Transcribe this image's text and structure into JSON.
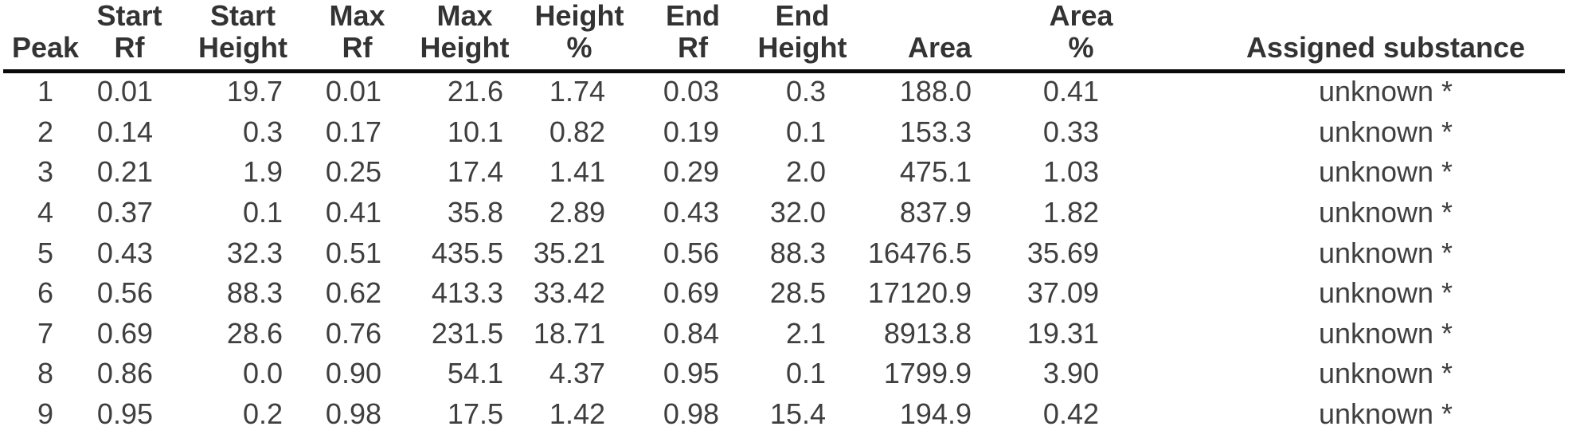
{
  "chart_data": {
    "type": "table",
    "columns": [
      {
        "line1": "",
        "line2": "Peak"
      },
      {
        "line1": "Start",
        "line2": "Rf"
      },
      {
        "line1": "Start",
        "line2": "Height"
      },
      {
        "line1": "Max",
        "line2": "Rf"
      },
      {
        "line1": "Max",
        "line2": "Height"
      },
      {
        "line1": "Height",
        "line2": "%"
      },
      {
        "line1": "End",
        "line2": "Rf"
      },
      {
        "line1": "End",
        "line2": "Height"
      },
      {
        "line1": "",
        "line2": "Area"
      },
      {
        "line1": "Area",
        "line2": "%"
      },
      {
        "line1": "",
        "line2": "Assigned substance"
      }
    ],
    "rows": [
      [
        "1",
        "0.01",
        "19.7",
        "0.01",
        "21.6",
        "1.74",
        "0.03",
        "0.3",
        "188.0",
        "0.41",
        "unknown *"
      ],
      [
        "2",
        "0.14",
        "0.3",
        "0.17",
        "10.1",
        "0.82",
        "0.19",
        "0.1",
        "153.3",
        "0.33",
        "unknown *"
      ],
      [
        "3",
        "0.21",
        "1.9",
        "0.25",
        "17.4",
        "1.41",
        "0.29",
        "2.0",
        "475.1",
        "1.03",
        "unknown *"
      ],
      [
        "4",
        "0.37",
        "0.1",
        "0.41",
        "35.8",
        "2.89",
        "0.43",
        "32.0",
        "837.9",
        "1.82",
        "unknown *"
      ],
      [
        "5",
        "0.43",
        "32.3",
        "0.51",
        "435.5",
        "35.21",
        "0.56",
        "88.3",
        "16476.5",
        "35.69",
        "unknown *"
      ],
      [
        "6",
        "0.56",
        "88.3",
        "0.62",
        "413.3",
        "33.42",
        "0.69",
        "28.5",
        "17120.9",
        "37.09",
        "unknown *"
      ],
      [
        "7",
        "0.69",
        "28.6",
        "0.76",
        "231.5",
        "18.71",
        "0.84",
        "2.1",
        "8913.8",
        "19.31",
        "unknown *"
      ],
      [
        "8",
        "0.86",
        "0.0",
        "0.90",
        "54.1",
        "4.37",
        "0.95",
        "0.1",
        "1799.9",
        "3.90",
        "unknown *"
      ],
      [
        "9",
        "0.95",
        "0.2",
        "0.98",
        "17.5",
        "1.42",
        "0.98",
        "15.4",
        "194.9",
        "0.42",
        "unknown *"
      ]
    ],
    "layout": {
      "grid": "off",
      "header_divider": "single horizontal rule under header"
    }
  },
  "styles": {
    "background": "#ffffff",
    "header_text_color": "#333333",
    "body_text_color": "#3f3f3f",
    "rule_color": "#0a0a0a"
  },
  "column_keys": [
    "peak",
    "start-rf",
    "start-height",
    "max-rf",
    "max-height",
    "height-percent",
    "end-rf",
    "end-height",
    "area",
    "area-percent",
    "assigned-substance"
  ]
}
